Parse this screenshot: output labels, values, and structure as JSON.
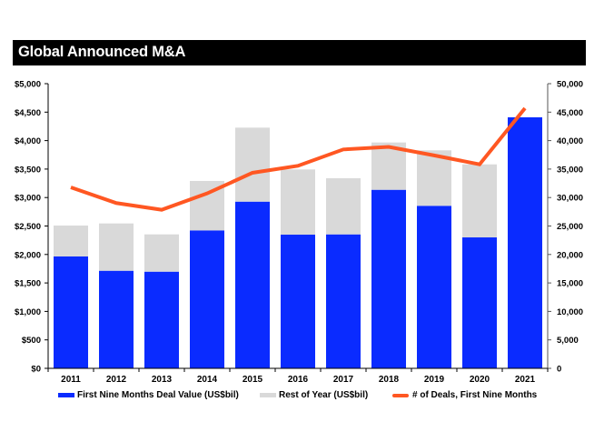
{
  "title": "Global Announced M&A",
  "colors": {
    "first_nine_months": "#0a2bff",
    "rest_of_year": "#d9d9d9",
    "deals_line": "#ff5722",
    "title_bg": "#000000",
    "title_text": "#ffffff"
  },
  "chart_data": {
    "type": "bar",
    "title": "Global Announced M&A",
    "stacked": true,
    "categories": [
      "2011",
      "2012",
      "2013",
      "2014",
      "2015",
      "2016",
      "2017",
      "2018",
      "2019",
      "2020",
      "2021"
    ],
    "series": [
      {
        "name": "First Nine Months Deal Value (US$bil)",
        "type": "bar",
        "axis": "left",
        "values": [
          1965,
          1714,
          1698,
          2423,
          2928,
          2348,
          2353,
          3136,
          2855,
          2300,
          4409
        ]
      },
      {
        "name": "Rest of Year (US$bil)",
        "type": "bar",
        "axis": "left",
        "values": [
          543,
          831,
          655,
          868,
          1300,
          1146,
          986,
          831,
          974,
          1283,
          0
        ]
      },
      {
        "name": "# of Deals, First Nine Months",
        "type": "line",
        "axis": "right",
        "values": [
          31790,
          29030,
          27850,
          30720,
          34350,
          35570,
          38450,
          38900,
          37400,
          35830,
          45690
        ]
      }
    ],
    "yaxis_left": {
      "range": [
        0,
        5000
      ],
      "ticks": [
        0,
        500,
        1000,
        1500,
        2000,
        2500,
        3000,
        3500,
        4000,
        4500,
        5000
      ],
      "tick_labels": [
        "$0",
        "$500",
        "$1,000",
        "$1,500",
        "$2,000",
        "$2,500",
        "$3,000",
        "$3,500",
        "$4,000",
        "$4,500",
        "$5,000"
      ]
    },
    "yaxis_right": {
      "range": [
        0,
        50000
      ],
      "ticks": [
        0,
        5000,
        10000,
        15000,
        20000,
        25000,
        30000,
        35000,
        40000,
        45000,
        50000
      ],
      "tick_labels": [
        "0",
        "5,000",
        "10,000",
        "15,000",
        "20,000",
        "25,000",
        "30,000",
        "35,000",
        "40,000",
        "45,000",
        "50,000"
      ]
    },
    "xlabel": "",
    "ylabel": "",
    "grid": false,
    "legend_position": "bottom"
  },
  "legend": [
    {
      "label": "First Nine Months Deal Value (US$bil)",
      "kind": "bar"
    },
    {
      "label": "Rest of Year (US$bil)",
      "kind": "bar"
    },
    {
      "label": "# of Deals, First Nine Months",
      "kind": "line"
    }
  ]
}
